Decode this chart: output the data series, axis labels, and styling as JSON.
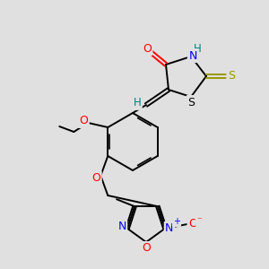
{
  "bg_color": "#e0e0e0",
  "bond_color": "#000000",
  "fig_width": 3.0,
  "fig_height": 3.0,
  "dpi": 100,
  "colors": {
    "O": "#ff0000",
    "N": "#0000ff",
    "S_ring": "#000000",
    "S_thioxo": "#999900",
    "H": "#008080",
    "C": "#000000"
  }
}
